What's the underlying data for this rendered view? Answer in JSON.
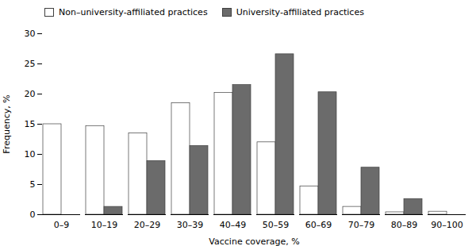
{
  "chart_data": {
    "type": "bar",
    "categories": [
      "0–9",
      "10–19",
      "20–29",
      "30–39",
      "40–49",
      "50–59",
      "60–69",
      "70–79",
      "80–89",
      "90–100"
    ],
    "series": [
      {
        "name": "Non–university-affiliated practices",
        "color": "#ffffff",
        "values": [
          15.0,
          14.7,
          13.5,
          18.5,
          20.2,
          12.0,
          4.7,
          1.3,
          0.4,
          0.5
        ]
      },
      {
        "name": "University-affiliated practices",
        "color": "#6b6b6b",
        "values": [
          0.0,
          1.3,
          8.9,
          11.4,
          21.5,
          26.6,
          20.3,
          7.8,
          2.6,
          0.0
        ]
      }
    ],
    "xlabel": "Vaccine coverage, %",
    "ylabel": "Frequency, %",
    "ylim": [
      0,
      30
    ],
    "yticks": [
      0,
      5,
      10,
      15,
      20,
      25,
      30
    ],
    "grid": false,
    "legend": "upper left"
  }
}
